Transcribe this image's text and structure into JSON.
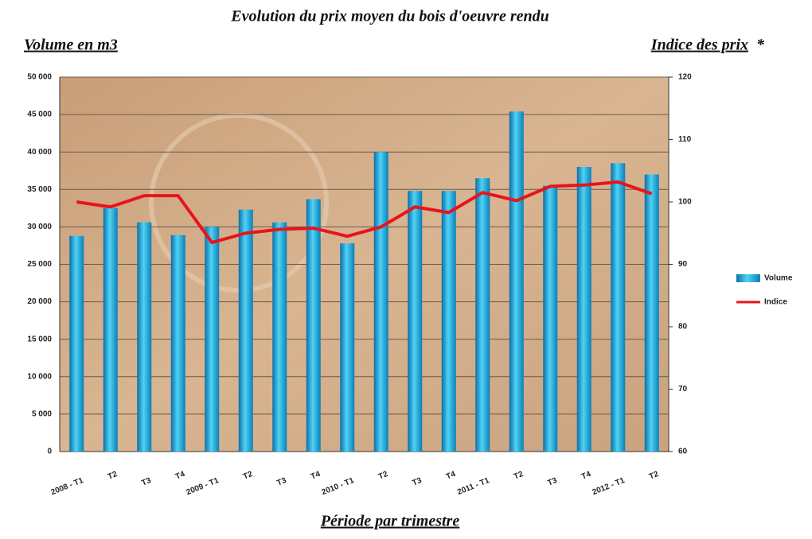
{
  "chart_data": {
    "type": "bar",
    "title": "Evolution du prix moyen du bois d'oeuvre rendu",
    "y_label": "Volume en m3",
    "y2_label": "Indice des prix",
    "y2_note": "*",
    "x_label": "Période par trimestre",
    "categories": [
      "2008 - T1",
      "T2",
      "T3",
      "T4",
      "2009 - T1",
      "T2",
      "T3",
      "T4",
      "2010 - T1",
      "T2",
      "T3",
      "T4",
      "2011 - T1",
      "T2",
      "T3",
      "T4",
      "2012 - T1",
      "T2"
    ],
    "series": [
      {
        "name": "Volume",
        "type": "bar",
        "color": "#1aa3d9",
        "values": [
          28800,
          32500,
          30600,
          28900,
          30000,
          32300,
          30600,
          33700,
          27800,
          40000,
          34800,
          34800,
          36500,
          45400,
          35500,
          38000,
          38500,
          37000
        ]
      },
      {
        "name": "Indice",
        "type": "line",
        "axis": "y2",
        "color": "#e8141b",
        "values": [
          100,
          99.2,
          101,
          101,
          93.5,
          95,
          95.6,
          95.8,
          94.5,
          96,
          99.2,
          98.3,
          101.5,
          100.2,
          102.5,
          102.7,
          103.2,
          101.3
        ]
      }
    ],
    "ylim": [
      0,
      50000
    ],
    "yticks": [
      0,
      {
        "value": 5000,
        "label": "5 000"
      },
      {
        "value": 10000,
        "label": "10 000"
      },
      {
        "value": 15000,
        "label": "15 000"
      },
      {
        "value": 20000,
        "label": "20 000"
      },
      {
        "value": 25000,
        "label": "25 000"
      },
      {
        "value": 30000,
        "label": "30 000"
      },
      {
        "value": 35000,
        "label": "35 000"
      },
      {
        "value": 40000,
        "label": "40 000"
      },
      {
        "value": 45000,
        "label": "45 000"
      },
      {
        "value": 50000,
        "label": "50 000"
      }
    ],
    "y2lim": [
      60,
      120
    ],
    "y2ticks": [
      60,
      70,
      80,
      90,
      100,
      110,
      120
    ],
    "grid": true,
    "legend": "right"
  }
}
